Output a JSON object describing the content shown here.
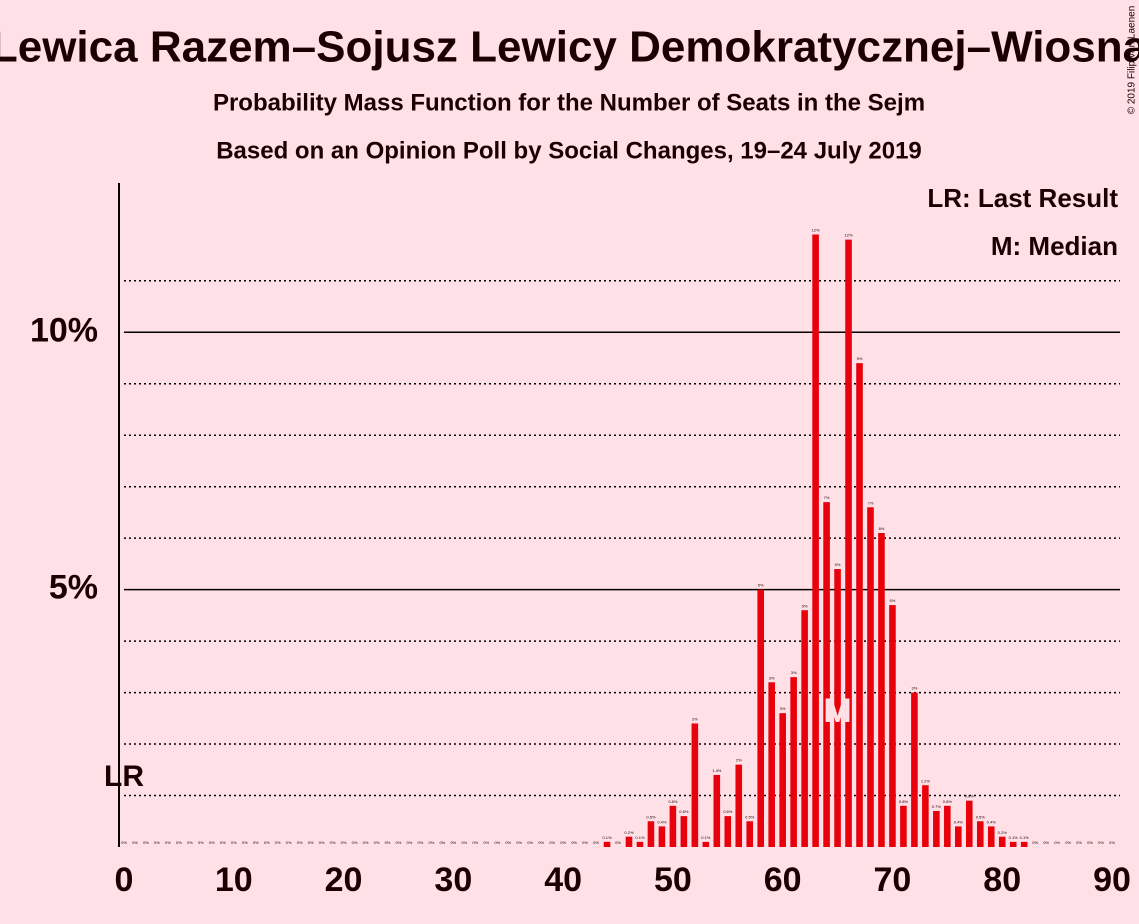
{
  "chart_data": {
    "type": "bar",
    "title": "Lewica Razem–Sojusz Lewicy Demokratycznej–Wiosna",
    "subtitle": "Probability Mass Function for the Number of Seats in the Sejm",
    "subtitle2": "Based on an Opinion Poll by Social Changes, 19–24 July 2019",
    "copyright": "© 2019 Filip van Laenen",
    "legend": [
      "LR: Last Result",
      "M: Median"
    ],
    "last_result_label": "LR",
    "median": 65,
    "median_label": "M",
    "color": "#e8000b",
    "x": [
      0,
      1,
      2,
      3,
      4,
      5,
      6,
      7,
      8,
      9,
      10,
      11,
      12,
      13,
      14,
      15,
      16,
      17,
      18,
      19,
      20,
      21,
      22,
      23,
      24,
      25,
      26,
      27,
      28,
      29,
      30,
      31,
      32,
      33,
      34,
      35,
      36,
      37,
      38,
      39,
      40,
      41,
      42,
      43,
      44,
      45,
      46,
      47,
      48,
      49,
      50,
      51,
      52,
      53,
      54,
      55,
      56,
      57,
      58,
      59,
      60,
      61,
      62,
      63,
      64,
      65,
      66,
      67,
      68,
      69,
      70,
      71,
      72,
      73,
      74,
      75,
      76,
      77,
      78,
      79,
      80,
      81,
      82,
      83,
      84,
      85,
      86,
      87,
      88,
      89,
      90
    ],
    "values": [
      0,
      0,
      0,
      0,
      0,
      0,
      0,
      0,
      0,
      0,
      0,
      0,
      0,
      0,
      0,
      0,
      0,
      0,
      0,
      0,
      0,
      0,
      0,
      0,
      0,
      0,
      0,
      0,
      0,
      0,
      0,
      0,
      0,
      0,
      0,
      0,
      0,
      0,
      0,
      0,
      0,
      0,
      0,
      0,
      0.1,
      0,
      0.2,
      0.1,
      0.5,
      0.4,
      0.8,
      0.6,
      2.4,
      0.1,
      1.4,
      0.6,
      1.6,
      0.5,
      5.0,
      3.2,
      2.6,
      3.3,
      4.6,
      11.9,
      6.7,
      5.4,
      11.8,
      9.4,
      6.6,
      6.1,
      4.7,
      0.8,
      3.0,
      1.2,
      0.7,
      0.8,
      0.4,
      0.9,
      0.5,
      0.4,
      0.2,
      0.1,
      0.1,
      0,
      0,
      0,
      0,
      0,
      0,
      0,
      0
    ],
    "value_labels": [
      "0%",
      "0%",
      "0%",
      "0%",
      "0%",
      "0%",
      "0%",
      "0%",
      "0%",
      "0%",
      "0%",
      "0%",
      "0%",
      "0%",
      "0%",
      "0%",
      "0%",
      "0%",
      "0%",
      "0%",
      "0%",
      "0%",
      "0%",
      "0%",
      "0%",
      "0%",
      "0%",
      "0%",
      "0%",
      "0%",
      "0%",
      "0%",
      "0%",
      "0%",
      "0%",
      "0%",
      "0%",
      "0%",
      "0%",
      "0%",
      "0%",
      "0%",
      "0%",
      "0%",
      "0.1%",
      "0%",
      "0.2%",
      "0.1%",
      "0.5%",
      "0.4%",
      "0.8%",
      "0.6%",
      "2%",
      "0.1%",
      "1.4%",
      "0.6%",
      "2%",
      "0.5%",
      "5%",
      "3%",
      "3%",
      "3%",
      "5%",
      "12%",
      "7%",
      "5%",
      "12%",
      "9%",
      "7%",
      "6%",
      "5%",
      "0.8%",
      "3%",
      "1.2%",
      "0.7%",
      "0.8%",
      "0.4%",
      "0.9%",
      "0.5%",
      "0.4%",
      "0.2%",
      "0.1%",
      "0.1%",
      "0%",
      "0%",
      "0%",
      "0%",
      "0%",
      "0%",
      "0%",
      "0%"
    ],
    "xlim": [
      0,
      90
    ],
    "xticks": [
      0,
      10,
      20,
      30,
      40,
      50,
      60,
      70,
      80,
      90
    ],
    "ylim": [
      0,
      12.9
    ],
    "yticks": [
      {
        "value": 5,
        "label": "5%"
      },
      {
        "value": 10,
        "label": "10%"
      }
    ],
    "minor_yticks": [
      1,
      2,
      3,
      4,
      6,
      7,
      8,
      9,
      11
    ]
  }
}
